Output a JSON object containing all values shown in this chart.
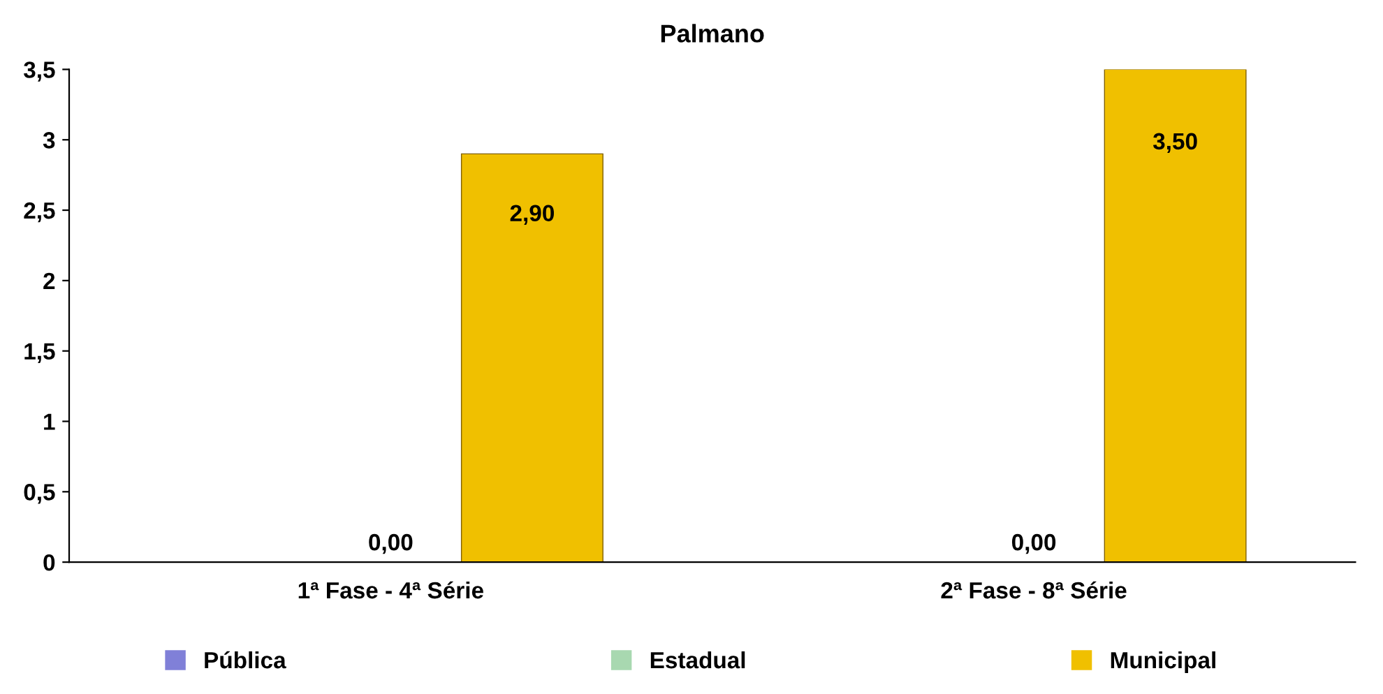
{
  "chart_data": {
    "type": "bar",
    "title": "Palmano",
    "categories": [
      "1ª Fase - 4ª Série",
      "2ª Fase - 8ª Série"
    ],
    "series": [
      {
        "name": "Pública",
        "color": "#8080d8",
        "values": [
          null,
          null
        ]
      },
      {
        "name": "Estadual",
        "color": "#a8d8b0",
        "values": [
          0,
          0
        ],
        "value_labels": [
          "0,00",
          "0,00"
        ]
      },
      {
        "name": "Municipal",
        "color": "#f0c000",
        "values": [
          2.9,
          3.5
        ],
        "value_labels": [
          "2,90",
          "3,50"
        ]
      }
    ],
    "ylim": [
      0,
      3.5
    ],
    "yticks": [
      0,
      {
        "value": 0.5,
        "label": "0,5"
      },
      1,
      {
        "value": 1.5,
        "label": "1,5"
      },
      2,
      {
        "value": 2.5,
        "label": "2,5"
      },
      3,
      {
        "value": 3.5,
        "label": "3,5"
      }
    ],
    "grid": false,
    "legend": "bottom"
  }
}
